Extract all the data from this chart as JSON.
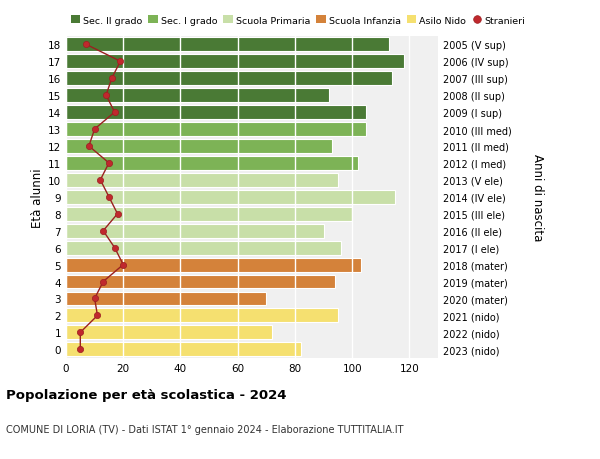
{
  "ages": [
    0,
    1,
    2,
    3,
    4,
    5,
    6,
    7,
    8,
    9,
    10,
    11,
    12,
    13,
    14,
    15,
    16,
    17,
    18
  ],
  "years": [
    "2023 (nido)",
    "2022 (nido)",
    "2021 (nido)",
    "2020 (mater)",
    "2019 (mater)",
    "2018 (mater)",
    "2017 (I ele)",
    "2016 (II ele)",
    "2015 (III ele)",
    "2014 (IV ele)",
    "2013 (V ele)",
    "2012 (I med)",
    "2011 (II med)",
    "2010 (III med)",
    "2009 (I sup)",
    "2008 (II sup)",
    "2007 (III sup)",
    "2006 (IV sup)",
    "2005 (V sup)"
  ],
  "bar_values": [
    82,
    72,
    95,
    70,
    94,
    103,
    96,
    90,
    100,
    115,
    95,
    102,
    93,
    105,
    105,
    92,
    114,
    118,
    113
  ],
  "stranieri": [
    5,
    5,
    11,
    10,
    13,
    20,
    17,
    13,
    18,
    15,
    12,
    15,
    8,
    10,
    17,
    14,
    16,
    19,
    7
  ],
  "bar_colors": [
    "#f5e070",
    "#f5e070",
    "#f5e070",
    "#d4823a",
    "#d4823a",
    "#d4823a",
    "#c8dfa8",
    "#c8dfa8",
    "#c8dfa8",
    "#c8dfa8",
    "#c8dfa8",
    "#7db356",
    "#7db356",
    "#7db356",
    "#4a7a35",
    "#4a7a35",
    "#4a7a35",
    "#4a7a35",
    "#4a7a35"
  ],
  "legend_labels": [
    "Sec. II grado",
    "Sec. I grado",
    "Scuola Primaria",
    "Scuola Infanzia",
    "Asilo Nido",
    "Stranieri"
  ],
  "legend_colors": [
    "#4a7a35",
    "#7db356",
    "#c8dfa8",
    "#d4823a",
    "#f5e070",
    "#c0282d"
  ],
  "stranieri_color": "#c0282d",
  "stranieri_line_color": "#9b2020",
  "ylabel_left": "Età alunni",
  "ylabel_right": "Anni di nascita",
  "title": "Popolazione per età scolastica - 2024",
  "subtitle": "COMUNE DI LORIA (TV) - Dati ISTAT 1° gennaio 2024 - Elaborazione TUTTITALIA.IT",
  "xlim": [
    0,
    130
  ],
  "xticks": [
    0,
    20,
    40,
    60,
    80,
    100,
    120
  ],
  "bg_color": "#ffffff",
  "plot_bg_color": "#f0f0f0"
}
